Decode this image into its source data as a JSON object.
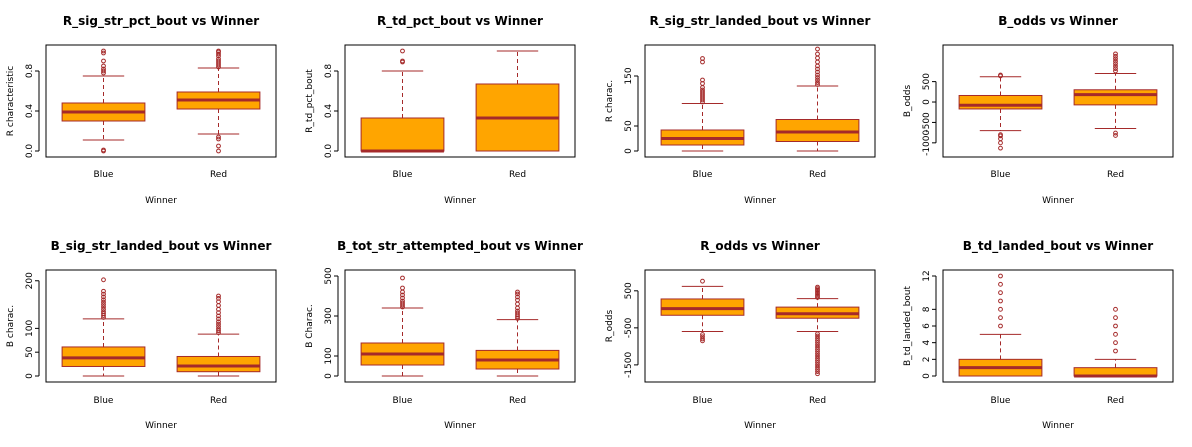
{
  "colors": {
    "box_fill": "#FFA500",
    "border": "#A52A2A",
    "axis": "#000000",
    "background": "#FFFFFF"
  },
  "chart_data": [
    {
      "type": "box",
      "title": "R_sig_str_pct_bout vs Winner",
      "xlabel": "Winner",
      "ylabel": "R characteristic",
      "categories": [
        "Blue",
        "Red"
      ],
      "ylim": [
        0,
        1
      ],
      "yticks": [
        0.0,
        0.4,
        0.8
      ],
      "ytick_labels": [
        "0.0",
        "0.4",
        "0.8"
      ],
      "boxes": [
        {
          "category": "Blue",
          "lower_whisker": 0.11,
          "q1": 0.3,
          "median": 0.39,
          "q3": 0.48,
          "upper_whisker": 0.75,
          "outliers": [
            0.0,
            0.01,
            0.78,
            0.8,
            0.82,
            0.85,
            0.9,
            0.98,
            1.0
          ]
        },
        {
          "category": "Red",
          "lower_whisker": 0.17,
          "q1": 0.42,
          "median": 0.51,
          "q3": 0.59,
          "upper_whisker": 0.83,
          "outliers": [
            0.0,
            0.05,
            0.12,
            0.14,
            0.84,
            0.86,
            0.88,
            0.9,
            0.92,
            0.95,
            0.97,
            0.99,
            1.0
          ]
        }
      ]
    },
    {
      "type": "box",
      "title": "R_td_pct_bout vs Winner",
      "xlabel": "Winner",
      "ylabel": "R_td_pct_bout",
      "categories": [
        "Blue",
        "Red"
      ],
      "ylim": [
        0,
        1
      ],
      "yticks": [
        0.0,
        0.4,
        0.8
      ],
      "ytick_labels": [
        "0.0",
        "0.4",
        "0.8"
      ],
      "boxes": [
        {
          "category": "Blue",
          "lower_whisker": 0.0,
          "q1": 0.0,
          "median": 0.0,
          "q3": 0.33,
          "upper_whisker": 0.8,
          "outliers": [
            0.89,
            0.9,
            1.0
          ]
        },
        {
          "category": "Red",
          "lower_whisker": 0.0,
          "q1": 0.0,
          "median": 0.33,
          "q3": 0.67,
          "upper_whisker": 1.0,
          "outliers": []
        }
      ]
    },
    {
      "type": "box",
      "title": "R_sig_str_landed_bout vs Winner",
      "xlabel": "Winner",
      "ylabel": "R charac.",
      "categories": [
        "Blue",
        "Red"
      ],
      "ylim": [
        0,
        200
      ],
      "yticks": [
        0,
        50,
        150
      ],
      "ytick_labels": [
        "0",
        "50",
        "150"
      ],
      "boxes": [
        {
          "category": "Blue",
          "lower_whisker": 0,
          "q1": 12,
          "median": 25,
          "q3": 42,
          "upper_whisker": 95,
          "outliers": [
            98,
            102,
            106,
            110,
            114,
            118,
            122,
            127,
            135,
            142,
            178,
            185
          ]
        },
        {
          "category": "Red",
          "lower_whisker": 0,
          "q1": 19,
          "median": 38,
          "q3": 63,
          "upper_whisker": 130,
          "outliers": [
            133,
            137,
            142,
            147,
            152,
            158,
            164,
            170,
            178,
            186,
            194,
            204
          ]
        }
      ]
    },
    {
      "type": "box",
      "title": "B_odds vs Winner",
      "xlabel": "Winner",
      "ylabel": "B_odds",
      "categories": [
        "Blue",
        "Red"
      ],
      "ylim": [
        -1200,
        1250
      ],
      "yticks": [
        -1000,
        -500,
        0,
        500
      ],
      "ytick_labels": [
        "-1000",
        "-500",
        "0",
        "500"
      ],
      "boxes": [
        {
          "category": "Blue",
          "lower_whisker": -700,
          "q1": -170,
          "median": -80,
          "q3": 160,
          "upper_whisker": 620,
          "outliers": [
            -1130,
            -1000,
            -900,
            -830,
            -800,
            640,
            660
          ]
        },
        {
          "category": "Red",
          "lower_whisker": -650,
          "q1": -70,
          "median": 180,
          "q3": 300,
          "upper_whisker": 700,
          "outliers": [
            -820,
            -760,
            760,
            820,
            880,
            940,
            1000,
            1060,
            1120,
            1180
          ]
        }
      ]
    },
    {
      "type": "box",
      "title": "B_sig_str_landed_bout vs Winner",
      "xlabel": "Winner",
      "ylabel": "B charac.",
      "categories": [
        "Blue",
        "Red"
      ],
      "ylim": [
        0,
        210
      ],
      "yticks": [
        0,
        50,
        100,
        200
      ],
      "ytick_labels": [
        "0",
        "50",
        "100",
        "200"
      ],
      "boxes": [
        {
          "category": "Blue",
          "lower_whisker": 0,
          "q1": 20,
          "median": 38,
          "q3": 61,
          "upper_whisker": 120,
          "outliers": [
            123,
            127,
            131,
            135,
            140,
            145,
            150,
            155,
            160,
            166,
            172,
            178,
            202
          ]
        },
        {
          "category": "Red",
          "lower_whisker": 0,
          "q1": 9,
          "median": 21,
          "q3": 41,
          "upper_whisker": 88,
          "outliers": [
            91,
            95,
            99,
            104,
            109,
            114,
            120,
            126,
            133,
            140,
            148,
            156,
            163,
            168
          ]
        }
      ]
    },
    {
      "type": "box",
      "title": "B_tot_str_attempted_bout vs Winner",
      "xlabel": "Winner",
      "ylabel": "B Charac.",
      "categories": [
        "Blue",
        "Red"
      ],
      "ylim": [
        0,
        500
      ],
      "yticks": [
        0,
        100,
        300,
        500
      ],
      "ytick_labels": [
        "0",
        "100",
        "300",
        "500"
      ],
      "boxes": [
        {
          "category": "Blue",
          "lower_whisker": 0,
          "q1": 55,
          "median": 110,
          "q3": 165,
          "upper_whisker": 340,
          "outliers": [
            345,
            355,
            365,
            375,
            390,
            405,
            420,
            440,
            490
          ]
        },
        {
          "category": "Red",
          "lower_whisker": 0,
          "q1": 35,
          "median": 80,
          "q3": 128,
          "upper_whisker": 282,
          "outliers": [
            288,
            296,
            305,
            315,
            325,
            340,
            360,
            380,
            395,
            410,
            420
          ]
        }
      ]
    },
    {
      "type": "box",
      "title": "R_odds vs Winner",
      "xlabel": "Winner",
      "ylabel": "R_odds",
      "categories": [
        "Blue",
        "Red"
      ],
      "ylim": [
        -1800,
        900
      ],
      "yticks": [
        -1500,
        -500,
        500
      ],
      "ytick_labels": [
        "-1500",
        "-500",
        "500"
      ],
      "boxes": [
        {
          "category": "Blue",
          "lower_whisker": -600,
          "q1": -160,
          "median": 20,
          "q3": 280,
          "upper_whisker": 620,
          "outliers": [
            -680,
            -740,
            -800,
            -850,
            760
          ]
        },
        {
          "category": "Red",
          "lower_whisker": -600,
          "q1": -240,
          "median": -120,
          "q3": 60,
          "upper_whisker": 290,
          "outliers": [
            320,
            360,
            400,
            440,
            480,
            520,
            560,
            600,
            -660,
            -720,
            -780,
            -840,
            -900,
            -960,
            -1020,
            -1080,
            -1140,
            -1200,
            -1260,
            -1320,
            -1380,
            -1440,
            -1500,
            -1560,
            -1620,
            -1680,
            -1740
          ]
        }
      ]
    },
    {
      "type": "box",
      "title": "B_td_landed_bout vs Winner",
      "xlabel": "Winner",
      "ylabel": "B_td_landed_bout",
      "categories": [
        "Blue",
        "Red"
      ],
      "ylim": [
        0,
        12
      ],
      "yticks": [
        0,
        2,
        4,
        6,
        8,
        12
      ],
      "ytick_labels": [
        "0",
        "2",
        "4",
        "6",
        "8",
        "12"
      ],
      "boxes": [
        {
          "category": "Blue",
          "lower_whisker": 0,
          "q1": 0,
          "median": 1,
          "q3": 2,
          "upper_whisker": 5,
          "outliers": [
            6,
            7,
            8,
            9,
            10,
            11,
            12
          ]
        },
        {
          "category": "Red",
          "lower_whisker": 0,
          "q1": 0,
          "median": 0,
          "q3": 1,
          "upper_whisker": 2,
          "outliers": [
            3,
            4,
            5,
            6,
            7,
            8
          ]
        }
      ]
    }
  ]
}
